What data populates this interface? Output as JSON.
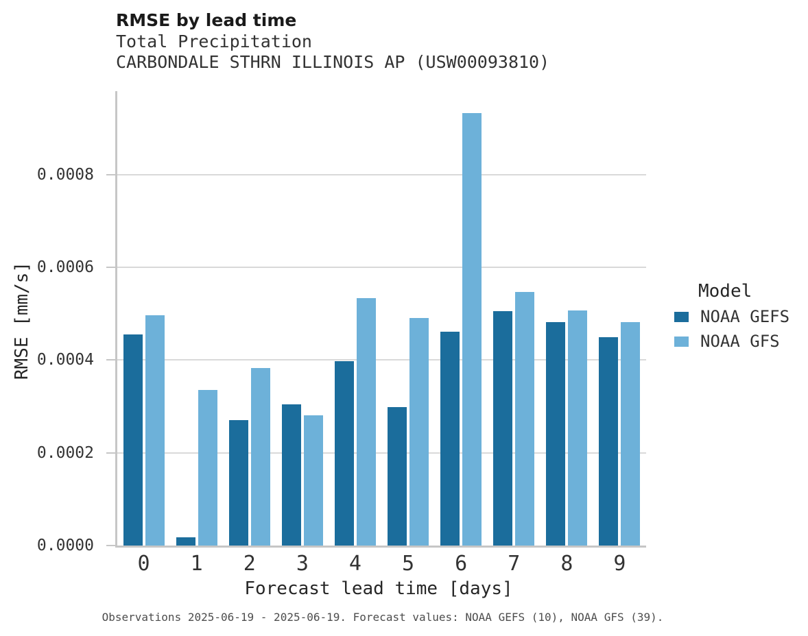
{
  "header": {
    "title": "RMSE by lead time",
    "subtitle1": "Total Precipitation",
    "subtitle2": "CARBONDALE STHRN ILLINOIS AP (USW00093810)"
  },
  "footer": {
    "text": "Observations 2025-06-19 - 2025-06-19. Forecast values: NOAA GEFS (10), NOAA GFS (39)."
  },
  "legend": {
    "title": "Model",
    "entries": [
      {
        "label": "NOAA GEFS",
        "color": "#1b6d9c"
      },
      {
        "label": "NOAA GFS",
        "color": "#6db1d9"
      }
    ]
  },
  "colors": {
    "series_dark_blue": "#1b6d9c",
    "series_light_blue": "#6db1d9",
    "gridline": "#d9d9d9",
    "spine": "#c6c6c6"
  },
  "chart_data": {
    "type": "bar",
    "title": "RMSE by lead time",
    "subtitle": [
      "Total Precipitation",
      "CARBONDALE STHRN ILLINOIS AP (USW00093810)"
    ],
    "xlabel": "Forecast lead time [days]",
    "ylabel": "RMSE [mm/s]",
    "categories": [
      "0",
      "1",
      "2",
      "3",
      "4",
      "5",
      "6",
      "7",
      "8",
      "9"
    ],
    "series": [
      {
        "name": "NOAA GEFS",
        "color": "#1b6d9c",
        "values": [
          0.000456,
          1.8e-05,
          0.000271,
          0.000304,
          0.000398,
          0.000299,
          0.000461,
          0.000505,
          0.000482,
          0.000449
        ]
      },
      {
        "name": "NOAA GFS",
        "color": "#6db1d9",
        "values": [
          0.000496,
          0.000335,
          0.000383,
          0.000281,
          0.000533,
          0.000491,
          0.000932,
          0.000547,
          0.000507,
          0.000482
        ]
      }
    ],
    "ylim": [
      0,
      0.00098
    ],
    "yticks": [
      0.0,
      0.0002,
      0.0004,
      0.0006,
      0.0008
    ],
    "ytick_labels": [
      "0.0000",
      "0.0002",
      "0.0004",
      "0.0006",
      "0.0008"
    ],
    "grid": "horizontal",
    "legend_title": "Model",
    "legend_position": "right"
  }
}
